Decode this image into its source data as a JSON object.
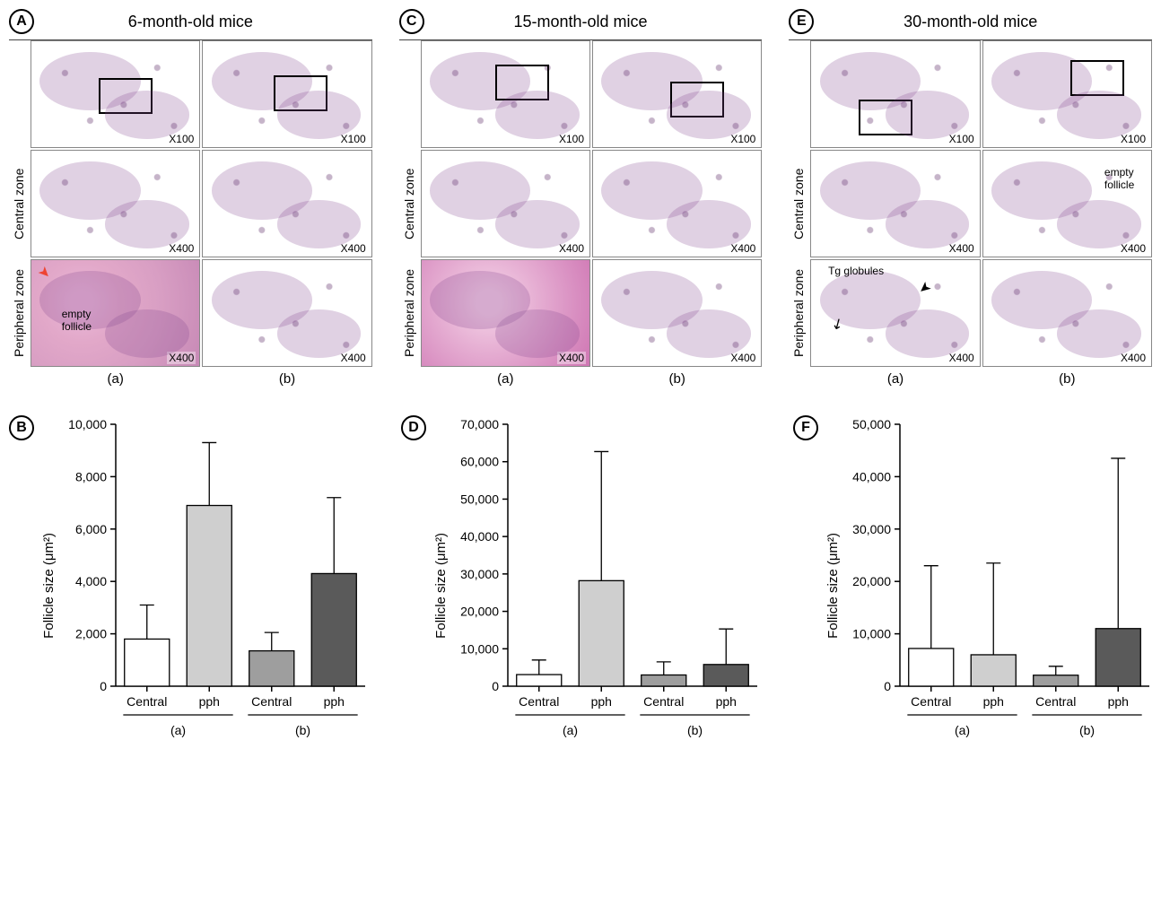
{
  "panels": {
    "ages": [
      "6-month-old mice",
      "15-month-old mice",
      "30-month-old mice"
    ],
    "letters_top": [
      "A",
      "C",
      "E"
    ],
    "letters_bottom": [
      "B",
      "D",
      "F"
    ],
    "row_labels": [
      "Central zone",
      "Peripheral zone"
    ],
    "sub_labels": [
      "(a)",
      "(b)"
    ],
    "mag_low": "X100",
    "mag_high": "X400",
    "annotations": {
      "empty_follicle": "empty\nfollicle",
      "tg_globules": "Tg globules"
    }
  },
  "charts": {
    "ylabel": "Follicle size (μm²)",
    "x_categories": [
      "Central",
      "pph",
      "Central",
      "pph"
    ],
    "x_groups": [
      "(a)",
      "(b)"
    ],
    "colors": {
      "bar1_fill": "#ffffff",
      "bar2_fill": "#cfcfcf",
      "bar3_fill": "#9e9e9e",
      "bar4_fill": "#5a5a5a",
      "axis": "#000000",
      "errbar": "#000000",
      "tick_text": "#000000"
    },
    "bar_width": 0.72,
    "axis_fontsize": 14,
    "tick_fontsize": 14,
    "B": {
      "ylim": [
        0,
        10000
      ],
      "ytick_step": 2000,
      "ytick_labels": [
        "0",
        "2,000",
        "4,000",
        "6,000",
        "8,000",
        "10,000"
      ],
      "values": [
        1800,
        6900,
        1350,
        4300
      ],
      "err": [
        1300,
        2400,
        700,
        2900
      ]
    },
    "D": {
      "ylim": [
        0,
        70000
      ],
      "ytick_step": 10000,
      "ytick_labels": [
        "0",
        "10,000",
        "20,000",
        "30,000",
        "40,000",
        "50,000",
        "60,000",
        "70,000"
      ],
      "values": [
        3100,
        28200,
        3000,
        5800
      ],
      "err": [
        3900,
        34500,
        3500,
        9500
      ]
    },
    "F": {
      "ylim": [
        0,
        50000
      ],
      "ytick_step": 10000,
      "ytick_labels": [
        "0",
        "10,000",
        "20,000",
        "30,000",
        "40,000",
        "50,000"
      ],
      "values": [
        7200,
        6000,
        2100,
        11000
      ],
      "err": [
        15800,
        17500,
        1700,
        32500
      ]
    }
  }
}
